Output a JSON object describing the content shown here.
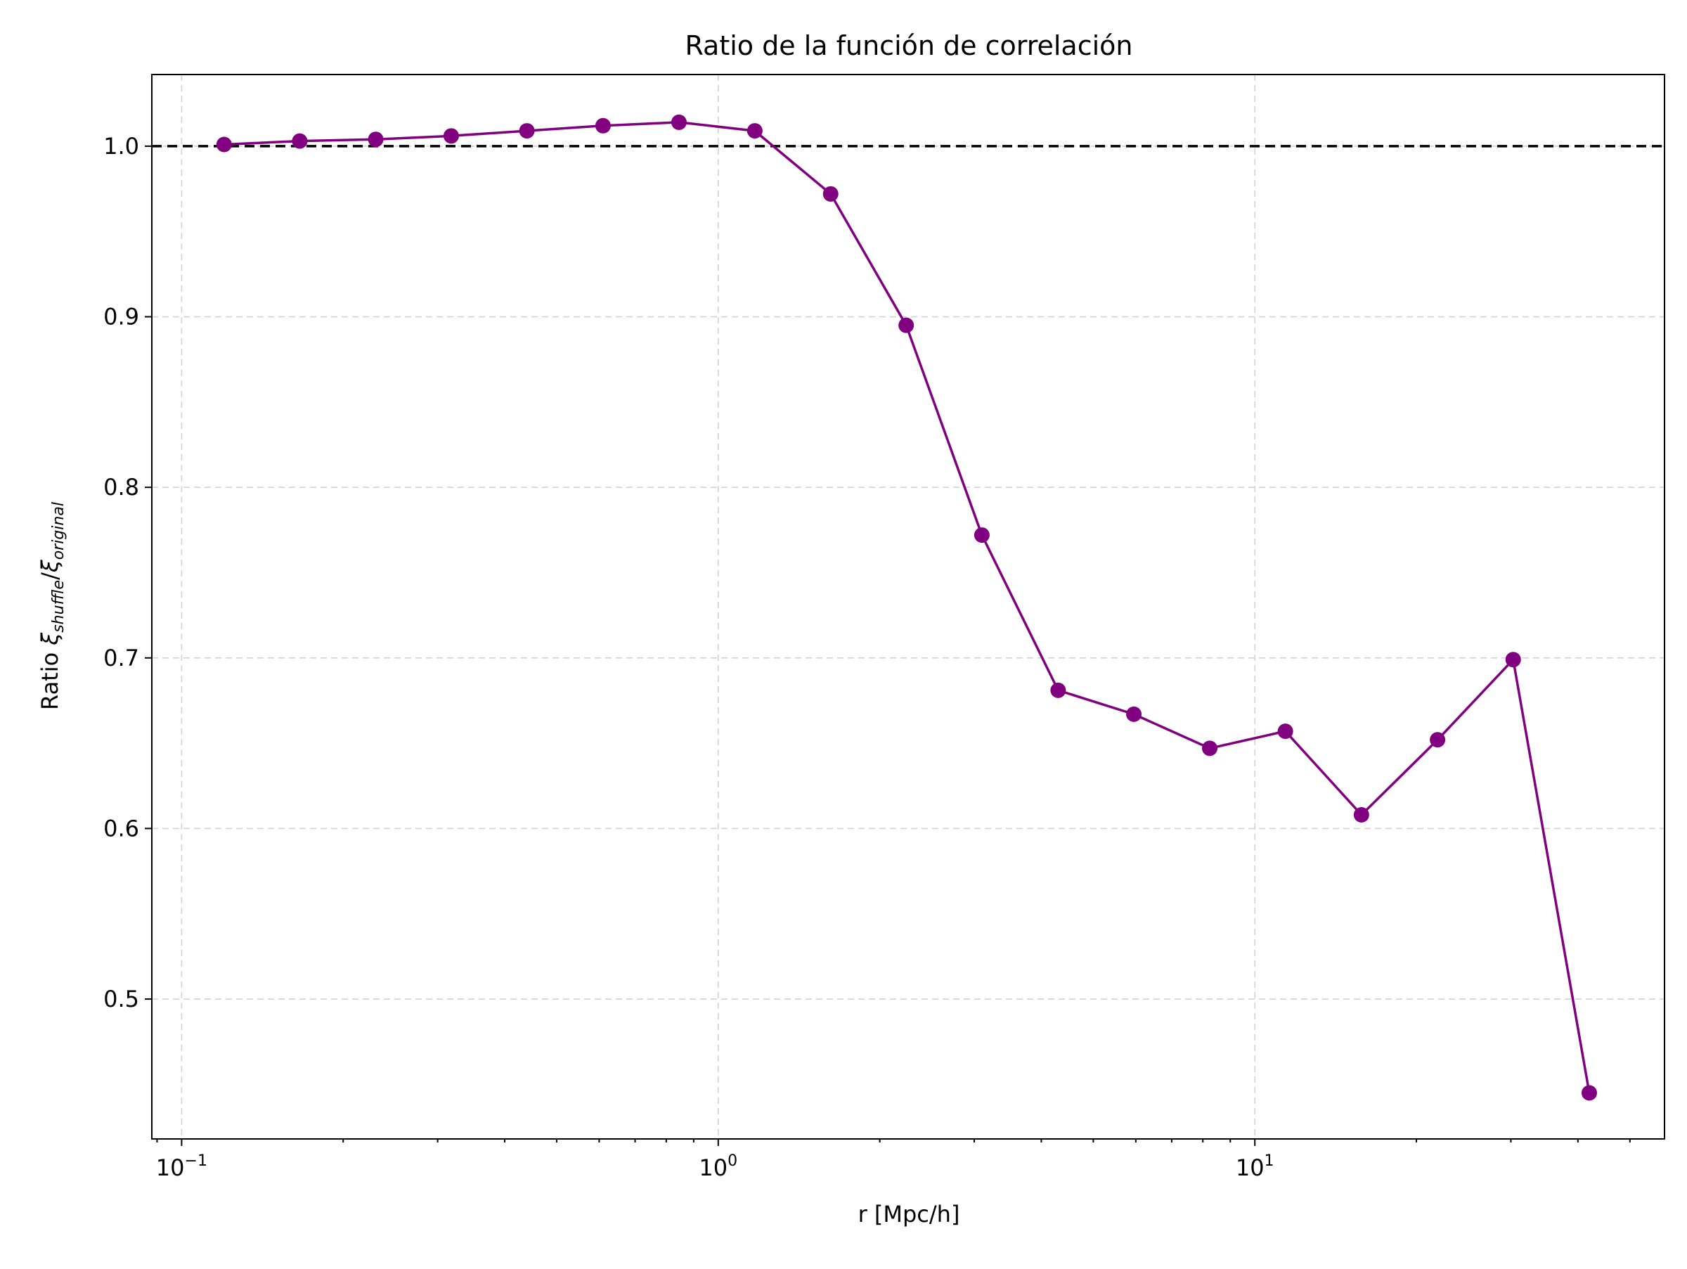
{
  "chart_data": {
    "type": "line",
    "title": "Ratio de la función de correlación",
    "xlabel": "r [Mpc/h]",
    "ylabel": {
      "prefix": "Ratio ",
      "num_symbol": "ξ",
      "num_sub": "shuffle",
      "slash": "/",
      "den_symbol": "ξ",
      "den_sub": "original"
    },
    "x_scale": "log",
    "xlim": [
      0.088,
      58
    ],
    "ylim": [
      0.418,
      1.042
    ],
    "grid": true,
    "x_ticks": [
      {
        "value": 0.1,
        "base": "10",
        "exp": "−1"
      },
      {
        "value": 1,
        "base": "10",
        "exp": "0"
      },
      {
        "value": 10,
        "base": "10",
        "exp": "1"
      }
    ],
    "y_ticks": [
      {
        "value": 0.5,
        "label": "0.5"
      },
      {
        "value": 0.6,
        "label": "0.6"
      },
      {
        "value": 0.7,
        "label": "0.7"
      },
      {
        "value": 0.8,
        "label": "0.8"
      },
      {
        "value": 0.9,
        "label": "0.9"
      },
      {
        "value": 1.0,
        "label": "1.0"
      }
    ],
    "reference_line": {
      "y": 1.0,
      "style": "dashed",
      "color": "#000000"
    },
    "series": [
      {
        "color": "#800080",
        "marker": "circle",
        "x": [
          0.12,
          0.166,
          0.23,
          0.318,
          0.44,
          0.61,
          0.845,
          1.17,
          1.62,
          2.24,
          3.1,
          4.3,
          5.95,
          8.24,
          11.4,
          15.8,
          21.9,
          30.3,
          42.0
        ],
        "y": [
          1.001,
          1.003,
          1.004,
          1.006,
          1.009,
          1.012,
          1.014,
          1.009,
          0.972,
          0.895,
          0.772,
          0.681,
          0.667,
          0.647,
          0.657,
          0.608,
          0.652,
          0.699,
          0.445
        ]
      }
    ]
  }
}
